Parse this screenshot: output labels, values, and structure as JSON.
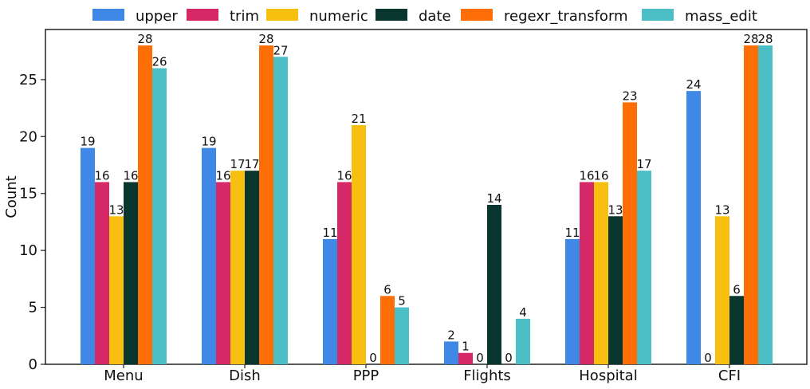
{
  "chart_data": {
    "type": "bar",
    "ylabel": "Count",
    "ylim": [
      0,
      29.4
    ],
    "yticks": [
      0,
      5,
      10,
      15,
      20,
      25
    ],
    "categories": [
      "Menu",
      "Dish",
      "PPP",
      "Flights",
      "Hospital",
      "CFI"
    ],
    "legend_position": "top",
    "grid": false,
    "series": [
      {
        "name": "upper",
        "color": "#3f88e5",
        "values": [
          19,
          19,
          11,
          2,
          11,
          24
        ]
      },
      {
        "name": "trim",
        "color": "#d62866",
        "values": [
          16,
          16,
          16,
          1,
          16,
          0
        ]
      },
      {
        "name": "numeric",
        "color": "#f7c010",
        "values": [
          13,
          17,
          21,
          0,
          16,
          13
        ]
      },
      {
        "name": "date",
        "color": "#093730",
        "values": [
          16,
          17,
          0,
          14,
          13,
          6
        ]
      },
      {
        "name": "regexr_transform",
        "color": "#fd6e07",
        "values": [
          28,
          28,
          6,
          0,
          23,
          28
        ]
      },
      {
        "name": "mass_edit",
        "color": "#4bbec6",
        "values": [
          26,
          27,
          5,
          4,
          17,
          28
        ]
      }
    ]
  }
}
